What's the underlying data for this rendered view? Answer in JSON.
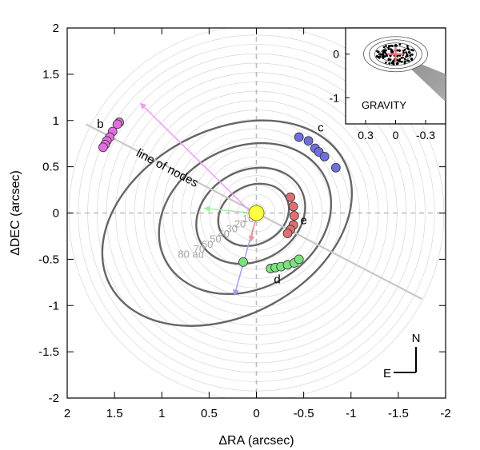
{
  "chart_data": {
    "type": "scatter",
    "xlabel": "ΔRA (arcsec)",
    "ylabel": "ΔDEC (arcsec)",
    "xlim": [
      2,
      -2
    ],
    "ylim": [
      -2,
      2
    ],
    "x_ticks": [
      2,
      1.5,
      1,
      0.5,
      0,
      -0.5,
      -1,
      -1.5,
      -2
    ],
    "x_tick_labels": [
      "2",
      "1.5",
      "1",
      "0.5",
      "0",
      "-0.5",
      "-1",
      "-1.5",
      "-2"
    ],
    "y_ticks": [
      2,
      1.5,
      1,
      0.5,
      0,
      -0.5,
      -1,
      -1.5,
      -2
    ],
    "y_tick_labels": [
      "2",
      "1.5",
      "1",
      "0.5",
      "0",
      "-0.5",
      "-1",
      "-1.5",
      "-2"
    ],
    "grid": false,
    "distance_ring_labels": [
      "10",
      "20",
      "30",
      "40",
      "50",
      "60",
      "70",
      "80 au"
    ],
    "distance_ring_radii_arcsec": [
      0.1,
      0.2,
      0.3,
      0.4,
      0.5,
      0.6,
      0.7,
      0.8
    ],
    "ring_spacing_arcsec": 0.0991,
    "orbits": [
      {
        "name": "b",
        "cx": 0.31,
        "cy": -0.11,
        "rx": 1.4,
        "ry": 0.98,
        "angle_deg": -28
      },
      {
        "name": "c",
        "cx": 0.12,
        "cy": -0.06,
        "rx": 0.95,
        "ry": 0.75,
        "angle_deg": -28
      },
      {
        "name": "d",
        "cx": 0.06,
        "cy": -0.03,
        "rx": 0.6,
        "ry": 0.48,
        "angle_deg": -28
      },
      {
        "name": "e",
        "cx": 0.03,
        "cy": -0.02,
        "rx": 0.39,
        "ry": 0.31,
        "angle_deg": -28
      }
    ],
    "series": [
      {
        "name": "b",
        "color": "#e070e0",
        "label_x": 1.65,
        "label_y": 0.92,
        "x": [
          1.45,
          1.47,
          1.52,
          1.55,
          1.58,
          1.6,
          1.62
        ],
        "y": [
          0.98,
          0.96,
          0.88,
          0.82,
          0.78,
          0.74,
          0.71
        ]
      },
      {
        "name": "c",
        "color": "#6f6fe0",
        "label_x": -0.68,
        "label_y": 0.88,
        "x": [
          -0.45,
          -0.55,
          -0.62,
          -0.66,
          -0.72,
          -0.84
        ],
        "y": [
          0.82,
          0.78,
          0.7,
          0.66,
          0.61,
          0.49
        ]
      },
      {
        "name": "d",
        "color": "#7fe07f",
        "label_x": -0.22,
        "label_y": -0.76,
        "x": [
          0.14,
          -0.15,
          -0.2,
          -0.26,
          -0.33,
          -0.4,
          -0.45
        ],
        "y": [
          -0.53,
          -0.6,
          -0.59,
          -0.58,
          -0.56,
          -0.54,
          -0.5
        ]
      },
      {
        "name": "e",
        "color": "#e07070",
        "label_x": -0.5,
        "label_y": -0.12,
        "x": [
          -0.36,
          -0.39,
          -0.4,
          -0.39,
          -0.36,
          -0.33
        ],
        "y": [
          0.17,
          0.07,
          -0.03,
          -0.13,
          -0.18,
          -0.22
        ]
      }
    ],
    "star": {
      "x": 0,
      "y": 0,
      "color": "#ffff44"
    },
    "line_of_nodes": {
      "label": "line of nodes",
      "x1": 1.8,
      "y1": 0.96,
      "x2": -1.75,
      "y2": -0.93,
      "label_x": 0.96,
      "label_y": 0.45,
      "angle_deg": 28
    },
    "arrows": [
      {
        "color": "#f09cf0",
        "x1": 0.05,
        "y1": 0.0,
        "x2": 1.22,
        "y2": 1.18
      },
      {
        "color": "#a0f0a0",
        "x1": 0.05,
        "y1": 0.0,
        "x2": 0.54,
        "y2": 0.05
      },
      {
        "color": "#a0a0f0",
        "x1": 0.0,
        "y1": -0.04,
        "x2": 0.23,
        "y2": -0.88
      },
      {
        "color": "#f09999",
        "x1": 0.0,
        "y1": -0.03,
        "x2": 0.06,
        "y2": -0.3
      }
    ],
    "compass": {
      "n": "N",
      "e": "E"
    },
    "inset": {
      "label": "GRAVITY",
      "x_tick_labels": [
        "0.3",
        "0",
        "-0.3"
      ],
      "x_ticks": [
        0.3,
        0,
        -0.3
      ],
      "y_tick_labels": [
        "0",
        "-1"
      ],
      "y_ticks": [
        0,
        -1
      ],
      "xlim": [
        0.5,
        -0.5
      ],
      "ylim": [
        -1.6,
        0.6
      ]
    }
  }
}
